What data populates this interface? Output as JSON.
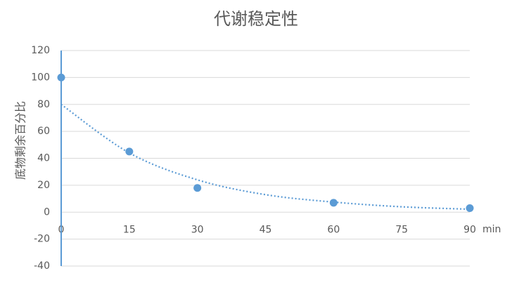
{
  "chart_data": {
    "type": "scatter",
    "title": "代谢稳定性",
    "y_label": "底物剩余百分比",
    "x_label": "min",
    "xlim": [
      0,
      90
    ],
    "xticks": [
      0,
      15,
      30,
      45,
      60,
      75,
      90
    ],
    "ylim": [
      -40,
      120
    ],
    "yticks": [
      -40,
      -20,
      0,
      20,
      40,
      60,
      80,
      100,
      120
    ],
    "grid": true,
    "series": [
      {
        "type": "scatter",
        "color": "#5b9bd5",
        "x": [
          0,
          15,
          30,
          60,
          90
        ],
        "values": [
          100,
          45,
          18,
          7,
          3
        ]
      },
      {
        "type": "line",
        "line_style": "dotted",
        "color": "#5b9bd5",
        "x": [
          0,
          15,
          30,
          45,
          60,
          75,
          90
        ],
        "values": [
          80,
          44,
          24,
          13,
          7.5,
          4,
          2.2
        ]
      }
    ]
  }
}
